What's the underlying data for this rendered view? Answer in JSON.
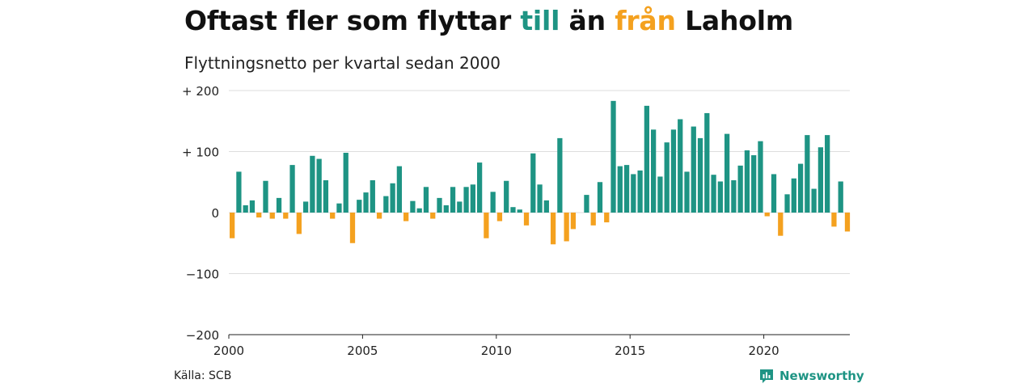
{
  "title": {
    "part1": "Oftast fler som flyttar ",
    "part2": "till",
    "part3": " än ",
    "part4": "från",
    "part5": " Laholm"
  },
  "subtitle": "Flyttningsnetto per kvartal sedan 2000",
  "source": "Källa: SCB",
  "brand": "Newsworthy",
  "colors": {
    "positive": "#1e9484",
    "negative": "#f4a11f",
    "grid": "#dddddd",
    "brand": "#1e9484"
  },
  "chart_data": {
    "type": "bar",
    "ylim": [
      -200,
      200
    ],
    "yticks": [
      {
        "value": 200,
        "label": "+ 200"
      },
      {
        "value": 100,
        "label": "+ 100"
      },
      {
        "value": 0,
        "label": "0"
      },
      {
        "value": -100,
        "label": "−100"
      },
      {
        "value": -200,
        "label": "−200"
      }
    ],
    "xticks": [
      "2000",
      "2005",
      "2010",
      "2015",
      "2020"
    ],
    "start_year": 2000,
    "values": [
      -42,
      67,
      12,
      20,
      -8,
      52,
      -10,
      24,
      -10,
      78,
      -35,
      18,
      93,
      88,
      53,
      -10,
      15,
      98,
      -50,
      21,
      33,
      53,
      -10,
      27,
      48,
      76,
      -14,
      19,
      7,
      42,
      -10,
      24,
      12,
      42,
      18,
      42,
      46,
      82,
      -42,
      34,
      -14,
      52,
      9,
      5,
      -21,
      97,
      46,
      20,
      -52,
      122,
      -47,
      -27,
      0,
      29,
      -21,
      50,
      -16,
      183,
      76,
      78,
      63,
      69,
      175,
      136,
      59,
      115,
      136,
      153,
      67,
      141,
      122,
      163,
      62,
      51,
      129,
      53,
      77,
      102,
      94,
      117,
      -6,
      63,
      -38,
      30,
      56,
      80,
      127,
      39,
      107,
      127,
      -23,
      51,
      -31
    ]
  }
}
